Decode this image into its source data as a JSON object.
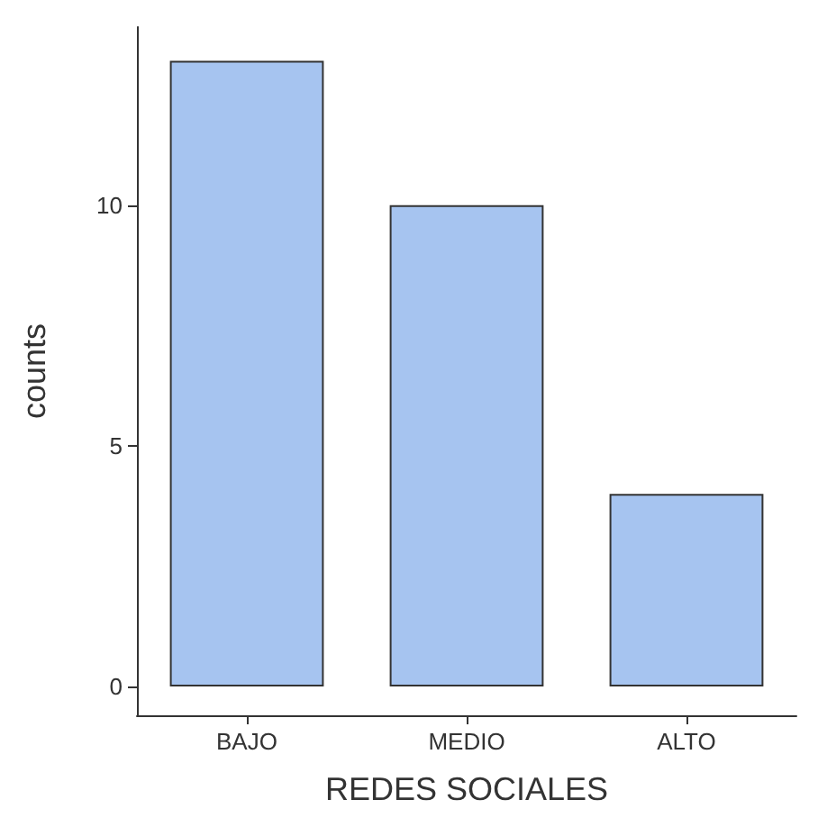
{
  "chart_data": {
    "type": "bar",
    "xlabel": "REDES SOCIALES",
    "ylabel": "counts",
    "categories": [
      "BAJO",
      "MEDIO",
      "ALTO"
    ],
    "values": [
      13,
      10,
      4
    ],
    "color": "#a6c4f0",
    "ylim": [
      -0.6,
      13.7
    ],
    "yticks": [
      0,
      5,
      10
    ],
    "grid": false
  }
}
